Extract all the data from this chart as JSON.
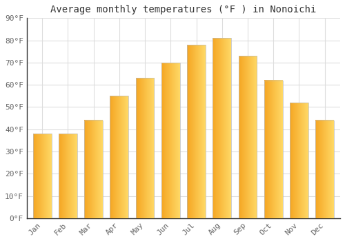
{
  "title": "Average monthly temperatures (°F ) in Nonoichi",
  "months": [
    "Jan",
    "Feb",
    "Mar",
    "Apr",
    "May",
    "Jun",
    "Jul",
    "Aug",
    "Sep",
    "Oct",
    "Nov",
    "Dec"
  ],
  "values": [
    38,
    38,
    44,
    55,
    63,
    70,
    78,
    81,
    73,
    62,
    52,
    44
  ],
  "bar_color_left": "#F5A623",
  "bar_color_right": "#FFD966",
  "bar_color_main": "#FBB429",
  "ylim": [
    0,
    90
  ],
  "yticks": [
    0,
    10,
    20,
    30,
    40,
    50,
    60,
    70,
    80,
    90
  ],
  "ytick_labels": [
    "0°F",
    "10°F",
    "20°F",
    "30°F",
    "40°F",
    "50°F",
    "60°F",
    "70°F",
    "80°F",
    "90°F"
  ],
  "background_color": "#FFFFFF",
  "plot_bg_color": "#FFFFFF",
  "grid_color": "#DDDDDD",
  "title_fontsize": 10,
  "tick_fontsize": 8,
  "bar_edge_color": "#BBBBBB",
  "bar_edge_width": 0.5,
  "spine_color": "#333333",
  "tick_color": "#666666"
}
